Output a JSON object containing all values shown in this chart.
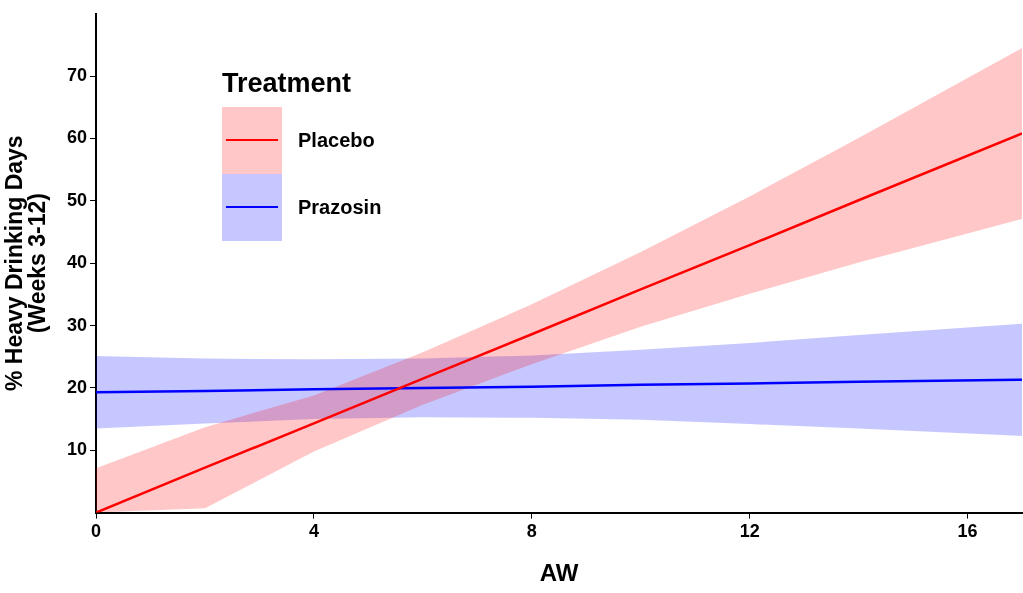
{
  "chart_data": {
    "type": "line",
    "xlabel": "AW",
    "ylabel": "% Heavy Drinking Days\n(Weeks 3-12)",
    "legend_title": "Treatment",
    "legend": "top left",
    "grid": false,
    "marker": "none",
    "xlim": [
      0,
      17
    ],
    "xticks": [
      0,
      4,
      8,
      12,
      16
    ],
    "ylim": [
      0,
      80
    ],
    "yticks": [
      10,
      20,
      30,
      40,
      50,
      60,
      70
    ],
    "x": [
      0,
      2,
      4,
      6,
      8,
      10,
      12,
      14,
      17
    ],
    "series": [
      {
        "name": "Placebo",
        "color": "#ff0000",
        "values": [
          0,
          7.2,
          14.3,
          21.5,
          28.6,
          35.8,
          42.9,
          50.1,
          60.8
        ],
        "lower": [
          0,
          0.7,
          9.8,
          17.3,
          23.8,
          29.8,
          35.1,
          40.1,
          47.1
        ],
        "upper": [
          7.1,
          13.7,
          18.8,
          25.7,
          33.4,
          41.8,
          50.7,
          60.1,
          74.5
        ]
      },
      {
        "name": "Prazosin",
        "color": "#0000ff",
        "values": [
          19.3,
          19.5,
          19.8,
          20.0,
          20.2,
          20.5,
          20.7,
          21.0,
          21.3
        ],
        "lower": [
          13.5,
          14.3,
          15.0,
          15.3,
          15.2,
          14.9,
          14.2,
          13.5,
          12.3
        ],
        "upper": [
          25.1,
          24.7,
          24.6,
          24.7,
          25.2,
          26.1,
          27.2,
          28.5,
          30.3
        ]
      }
    ]
  }
}
